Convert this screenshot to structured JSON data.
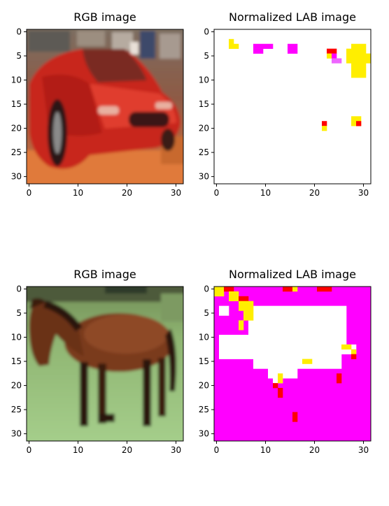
{
  "chart_data": [
    {
      "type": "image",
      "title": "RGB image",
      "x_ticks": [
        0,
        10,
        20,
        30
      ],
      "y_ticks": [
        0,
        5,
        10,
        15,
        20,
        25,
        30
      ],
      "xlim": [
        -0.5,
        31.5
      ],
      "ylim": [
        31.5,
        -0.5
      ],
      "content": "red car"
    },
    {
      "type": "heatmap",
      "title": "Normalized LAB image",
      "x_ticks": [
        0,
        10,
        20,
        30
      ],
      "y_ticks": [
        0,
        5,
        10,
        15,
        20,
        25,
        30
      ],
      "xlim": [
        -0.5,
        31.5
      ],
      "ylim": [
        31.5,
        -0.5
      ],
      "background": "#ffffff",
      "palette": {
        "Y": "#ffee00",
        "M": "#ff00ff",
        "R": "#ff0000",
        "P": "#ee66ff",
        "W": "#ffffff"
      },
      "patches": [
        {
          "x": 3,
          "y": 2,
          "w": 1,
          "h": 1,
          "c": "Y"
        },
        {
          "x": 3,
          "y": 3,
          "w": 2,
          "h": 1,
          "c": "Y"
        },
        {
          "x": 8,
          "y": 3,
          "w": 4,
          "h": 1,
          "c": "M"
        },
        {
          "x": 8,
          "y": 4,
          "w": 2,
          "h": 1,
          "c": "M"
        },
        {
          "x": 15,
          "y": 3,
          "w": 2,
          "h": 2,
          "c": "M"
        },
        {
          "x": 23,
          "y": 4,
          "w": 2,
          "h": 1,
          "c": "R"
        },
        {
          "x": 23,
          "y": 5,
          "w": 1,
          "h": 1,
          "c": "Y"
        },
        {
          "x": 24,
          "y": 5,
          "w": 1,
          "h": 1,
          "c": "M"
        },
        {
          "x": 24,
          "y": 6,
          "w": 2,
          "h": 1,
          "c": "P"
        },
        {
          "x": 28,
          "y": 3,
          "w": 3,
          "h": 7,
          "c": "Y"
        },
        {
          "x": 27,
          "y": 4,
          "w": 1,
          "h": 3,
          "c": "Y"
        },
        {
          "x": 31,
          "y": 5,
          "w": 1,
          "h": 2,
          "c": "Y"
        },
        {
          "x": 22,
          "y": 19,
          "w": 1,
          "h": 1,
          "c": "R"
        },
        {
          "x": 22,
          "y": 20,
          "w": 1,
          "h": 1,
          "c": "Y"
        },
        {
          "x": 28,
          "y": 18,
          "w": 2,
          "h": 2,
          "c": "Y"
        },
        {
          "x": 29,
          "y": 19,
          "w": 1,
          "h": 1,
          "c": "R"
        }
      ]
    },
    {
      "type": "image",
      "title": "RGB image",
      "x_ticks": [
        0,
        10,
        20,
        30
      ],
      "y_ticks": [
        0,
        5,
        10,
        15,
        20,
        25,
        30
      ],
      "xlim": [
        -0.5,
        31.5
      ],
      "ylim": [
        31.5,
        -0.5
      ],
      "content": "brown horse on grass"
    },
    {
      "type": "heatmap",
      "title": "Normalized LAB image",
      "x_ticks": [
        0,
        10,
        20,
        30
      ],
      "y_ticks": [
        0,
        5,
        10,
        15,
        20,
        25,
        30
      ],
      "xlim": [
        -0.5,
        31.5
      ],
      "ylim": [
        31.5,
        -0.5
      ],
      "background": "#ff00ff",
      "palette": {
        "Y": "#ffee00",
        "M": "#ff00ff",
        "R": "#ff0000",
        "P": "#ee66ff",
        "W": "#ffffff"
      },
      "patches": [
        {
          "x": 7,
          "y": 4,
          "w": 20,
          "h": 10,
          "c": "W"
        },
        {
          "x": 1,
          "y": 10,
          "w": 7,
          "h": 5,
          "c": "W"
        },
        {
          "x": 8,
          "y": 14,
          "w": 18,
          "h": 3,
          "c": "W"
        },
        {
          "x": 11,
          "y": 17,
          "w": 6,
          "h": 2,
          "c": "W"
        },
        {
          "x": 12,
          "y": 19,
          "w": 2,
          "h": 1,
          "c": "W"
        },
        {
          "x": 26,
          "y": 12,
          "w": 3,
          "h": 2,
          "c": "W"
        },
        {
          "x": 1,
          "y": 4,
          "w": 2,
          "h": 2,
          "c": "W"
        },
        {
          "x": 0,
          "y": 0,
          "w": 2,
          "h": 2,
          "c": "Y"
        },
        {
          "x": 2,
          "y": 0,
          "w": 2,
          "h": 1,
          "c": "R"
        },
        {
          "x": 3,
          "y": 1,
          "w": 2,
          "h": 2,
          "c": "Y"
        },
        {
          "x": 5,
          "y": 2,
          "w": 2,
          "h": 1,
          "c": "R"
        },
        {
          "x": 5,
          "y": 3,
          "w": 3,
          "h": 2,
          "c": "Y"
        },
        {
          "x": 6,
          "y": 5,
          "w": 2,
          "h": 2,
          "c": "Y"
        },
        {
          "x": 5,
          "y": 7,
          "w": 1,
          "h": 2,
          "c": "Y"
        },
        {
          "x": 14,
          "y": 0,
          "w": 2,
          "h": 1,
          "c": "R"
        },
        {
          "x": 16,
          "y": 0,
          "w": 1,
          "h": 1,
          "c": "Y"
        },
        {
          "x": 21,
          "y": 0,
          "w": 3,
          "h": 1,
          "c": "R"
        },
        {
          "x": 26,
          "y": 12,
          "w": 2,
          "h": 1,
          "c": "Y"
        },
        {
          "x": 28,
          "y": 13,
          "w": 1,
          "h": 1,
          "c": "Y"
        },
        {
          "x": 28,
          "y": 14,
          "w": 1,
          "h": 1,
          "c": "R"
        },
        {
          "x": 18,
          "y": 15,
          "w": 2,
          "h": 1,
          "c": "Y"
        },
        {
          "x": 13,
          "y": 18,
          "w": 1,
          "h": 2,
          "c": "Y"
        },
        {
          "x": 12,
          "y": 20,
          "w": 1,
          "h": 1,
          "c": "R"
        },
        {
          "x": 13,
          "y": 21,
          "w": 1,
          "h": 2,
          "c": "R"
        },
        {
          "x": 25,
          "y": 18,
          "w": 1,
          "h": 2,
          "c": "R"
        },
        {
          "x": 16,
          "y": 26,
          "w": 1,
          "h": 2,
          "c": "R"
        }
      ]
    }
  ]
}
